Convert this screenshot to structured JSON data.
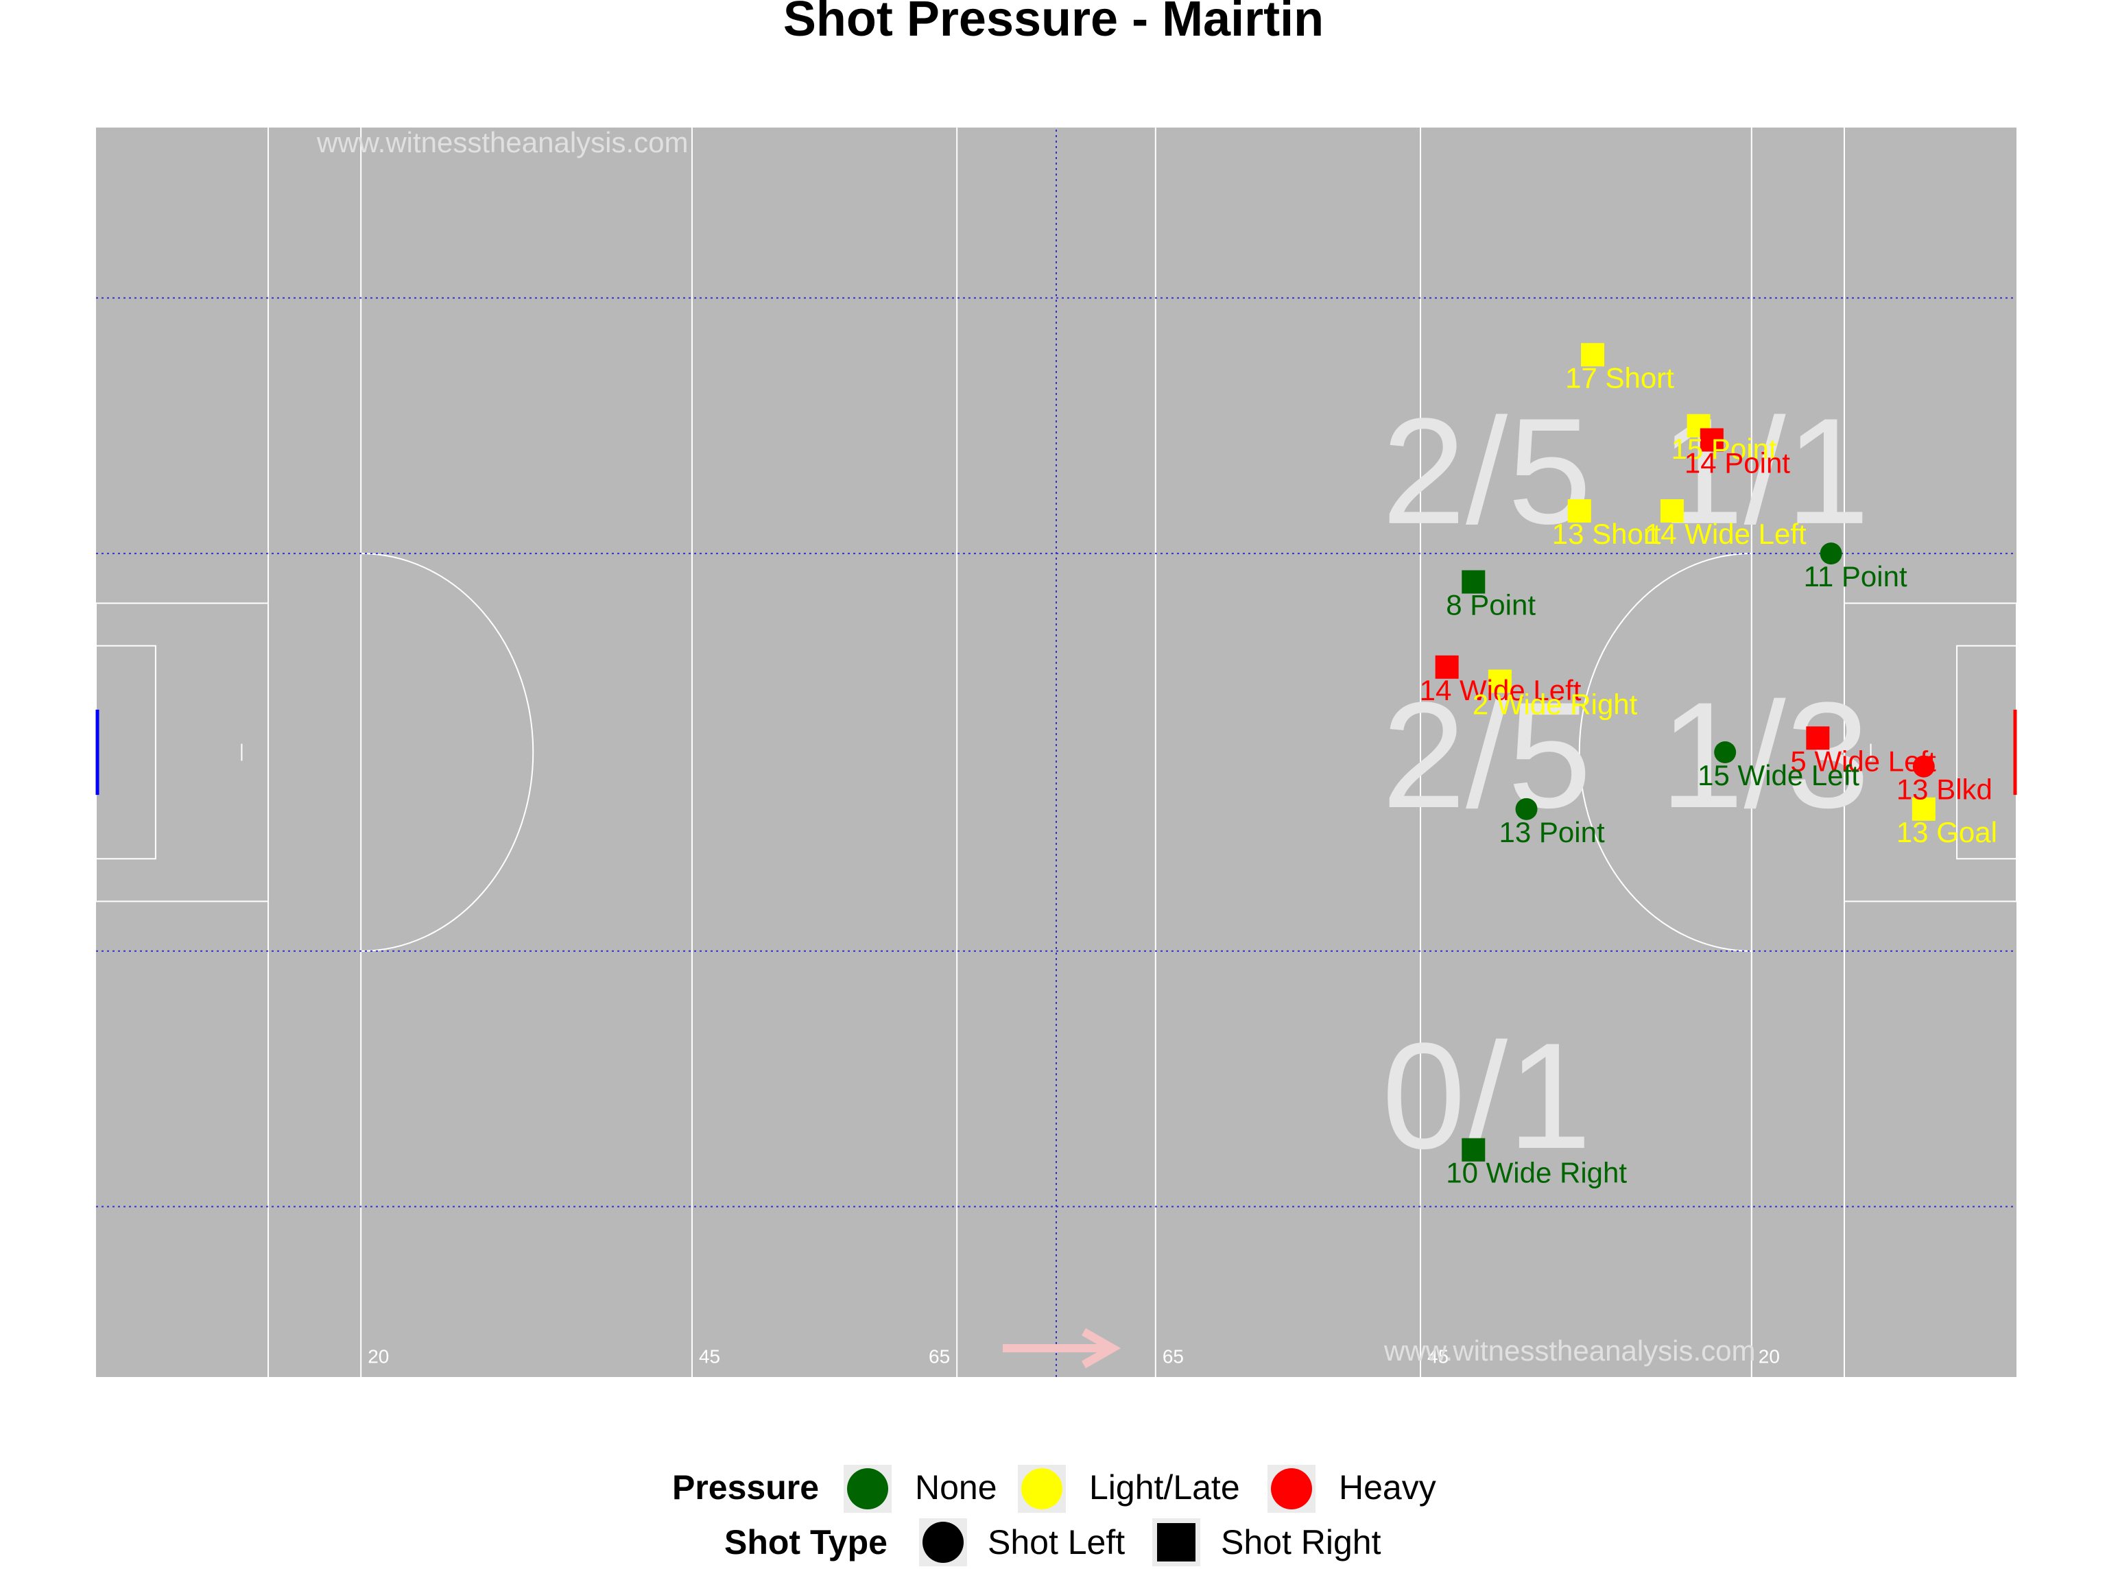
{
  "chart_data": {
    "type": "scatter",
    "title": "Shot Pressure - Mairtin",
    "watermark": "www.witnesstheanalysis.com",
    "pitch_lines": {
      "labels": [
        "20",
        "45",
        "65",
        "65",
        "45",
        "20"
      ]
    },
    "zone_counts": [
      {
        "text": "2/5",
        "x": 105,
        "y": 64
      },
      {
        "text": "1/1",
        "x": 126,
        "y": 64
      },
      {
        "text": "2/5",
        "x": 105,
        "y": 44
      },
      {
        "text": "1/3",
        "x": 126,
        "y": 44
      },
      {
        "text": "0/1",
        "x": 105,
        "y": 20
      }
    ],
    "pressure_colors": {
      "None": "#006400",
      "Light/Late": "#ffff00",
      "Heavy": "#ff0000"
    },
    "shots": [
      {
        "label": "17 Short",
        "minute": 17,
        "outcome": "Short",
        "pressure": "Light/Late",
        "shot_type": "Shot Right",
        "x": 113,
        "y": 72
      },
      {
        "label": "15 Point",
        "minute": 15,
        "outcome": "Point",
        "pressure": "Light/Late",
        "shot_type": "Shot Right",
        "x": 121,
        "y": 67
      },
      {
        "label": "14 Point",
        "minute": 14,
        "outcome": "Point",
        "pressure": "Heavy",
        "shot_type": "Shot Right",
        "x": 122,
        "y": 66
      },
      {
        "label": "13 Short",
        "minute": 13,
        "outcome": "Short",
        "pressure": "Light/Late",
        "shot_type": "Shot Right",
        "x": 112,
        "y": 61
      },
      {
        "label": "14 Wide Left",
        "minute": 14,
        "outcome": "Wide Left",
        "pressure": "Light/Late",
        "shot_type": "Shot Right",
        "x": 119,
        "y": 61
      },
      {
        "label": "11 Point",
        "minute": 11,
        "outcome": "Point",
        "pressure": "None",
        "shot_type": "Shot Left",
        "x": 131,
        "y": 58
      },
      {
        "label": "8 Point",
        "minute": 8,
        "outcome": "Point",
        "pressure": "None",
        "shot_type": "Shot Right",
        "x": 104,
        "y": 56
      },
      {
        "label": "14 Wide Left",
        "minute": 14,
        "outcome": "Wide Left",
        "pressure": "Heavy",
        "shot_type": "Shot Right",
        "x": 102,
        "y": 50
      },
      {
        "label": "2 Wide Right",
        "minute": 2,
        "outcome": "Wide Right",
        "pressure": "Light/Late",
        "shot_type": "Shot Right",
        "x": 106,
        "y": 49
      },
      {
        "label": "5 Wide Left",
        "minute": 5,
        "outcome": "Wide Left",
        "pressure": "Heavy",
        "shot_type": "Shot Right",
        "x": 130,
        "y": 45
      },
      {
        "label": "15 Wide Left",
        "minute": 15,
        "outcome": "Wide Left",
        "pressure": "None",
        "shot_type": "Shot Left",
        "x": 123,
        "y": 44
      },
      {
        "label": "13 Blkd",
        "minute": 13,
        "outcome": "Blkd",
        "pressure": "Heavy",
        "shot_type": "Shot Left",
        "x": 138,
        "y": 43
      },
      {
        "label": "13 Goal",
        "minute": 13,
        "outcome": "Goal",
        "pressure": "Light/Late",
        "shot_type": "Shot Right",
        "x": 138,
        "y": 40
      },
      {
        "label": "13 Point",
        "minute": 13,
        "outcome": "Point",
        "pressure": "None",
        "shot_type": "Shot Left",
        "x": 108,
        "y": 40
      },
      {
        "label": "10 Wide Right",
        "minute": 10,
        "outcome": "Wide Right",
        "pressure": "None",
        "shot_type": "Shot Right",
        "x": 104,
        "y": 16
      }
    ],
    "legend": {
      "pressure_title": "Pressure",
      "pressure_items": [
        "None",
        "Light/Late",
        "Heavy"
      ],
      "shot_type_title": "Shot Type",
      "shot_type_items": [
        "Shot Left",
        "Shot Right"
      ]
    },
    "xlim": [
      0,
      145
    ],
    "ylim": [
      0,
      88
    ]
  }
}
